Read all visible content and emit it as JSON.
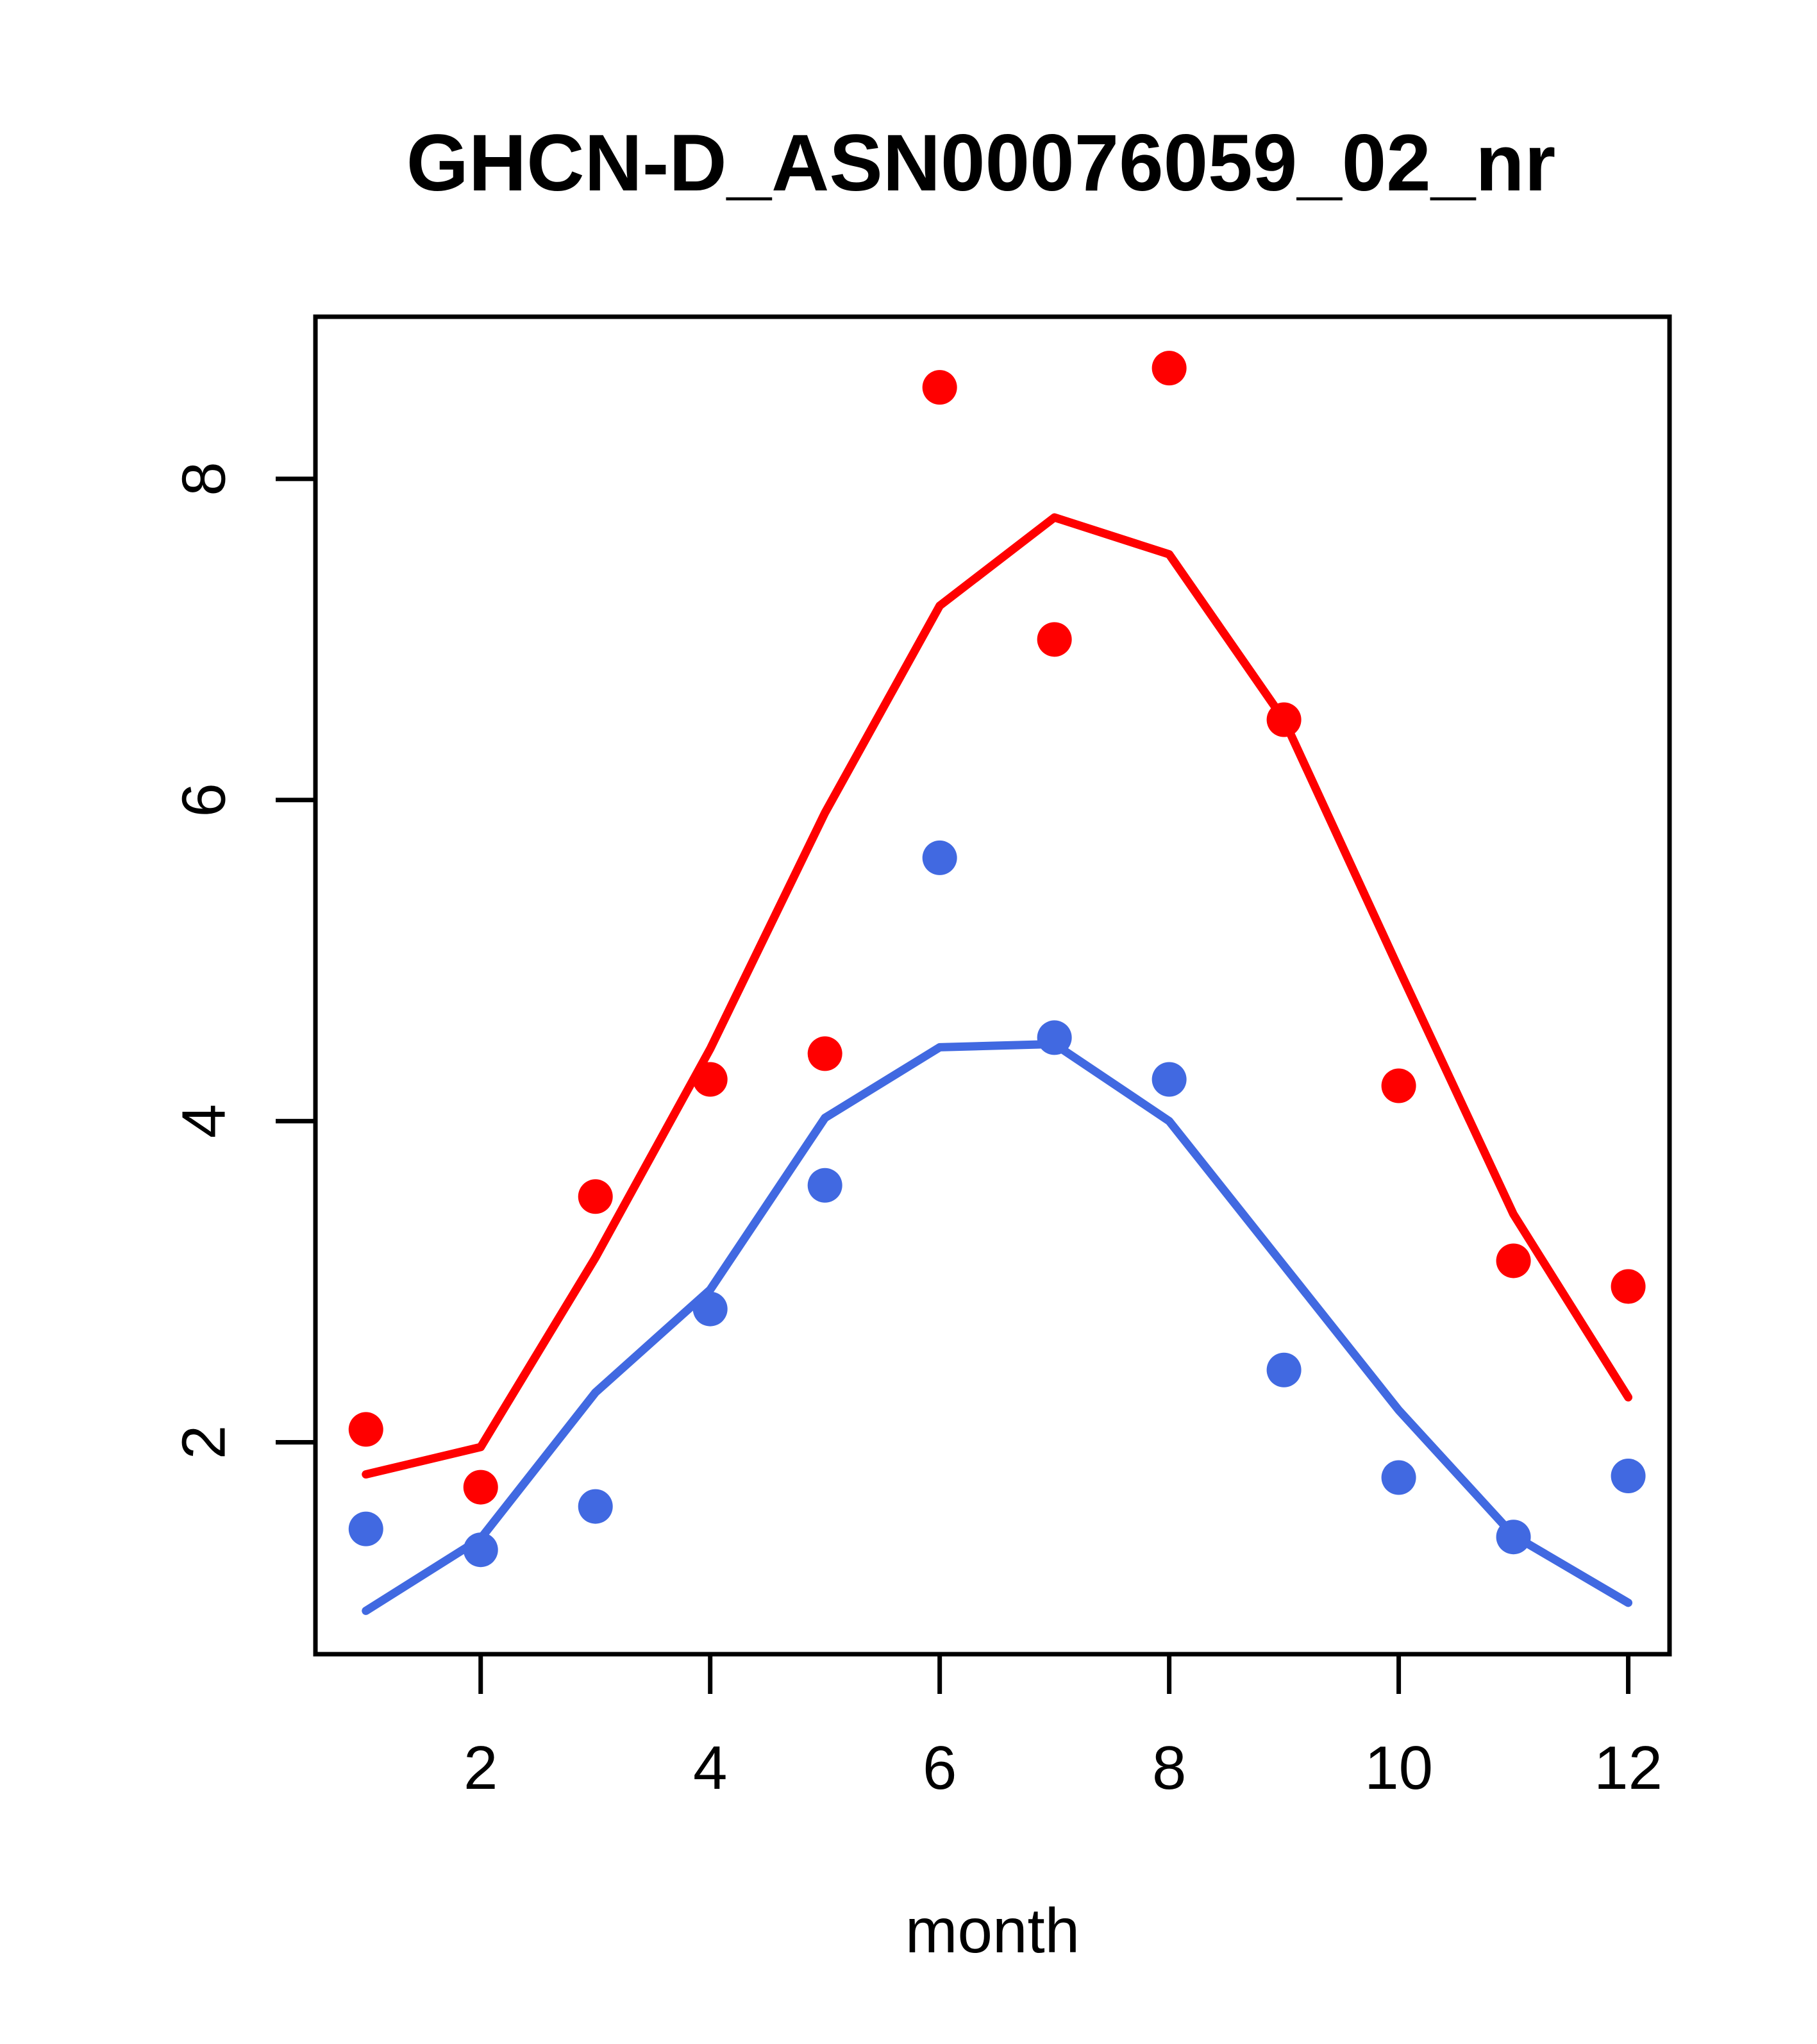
{
  "chart_data": {
    "type": "scatter",
    "title": "GHCN-D_ASN00076059_02_nr",
    "xlabel": "month",
    "ylabel": "",
    "x": [
      1,
      2,
      3,
      4,
      5,
      6,
      7,
      8,
      9,
      10,
      11,
      12
    ],
    "series": [
      {
        "name": "red-points",
        "kind": "scatter",
        "color": "#ff0000",
        "values": [
          2.08,
          1.72,
          3.53,
          4.26,
          4.42,
          8.57,
          7.0,
          8.69,
          6.5,
          4.22,
          3.13,
          2.97
        ]
      },
      {
        "name": "blue-points",
        "kind": "scatter",
        "color": "#4169e1",
        "values": [
          1.46,
          1.33,
          1.6,
          2.83,
          3.6,
          5.64,
          4.52,
          4.26,
          2.45,
          1.78,
          1.41,
          1.79
        ]
      },
      {
        "name": "red-smooth-line",
        "kind": "line",
        "color": "#ff0000",
        "values": [
          1.8,
          1.97,
          3.15,
          4.45,
          5.92,
          7.21,
          7.76,
          7.53,
          6.5,
          4.95,
          3.42,
          2.28
        ]
      },
      {
        "name": "blue-smooth-line",
        "kind": "line",
        "color": "#4169e1",
        "values": [
          0.95,
          1.4,
          2.31,
          2.95,
          4.02,
          4.46,
          4.48,
          4.0,
          3.1,
          2.2,
          1.42,
          1.0
        ]
      }
    ],
    "x_ticks": [
      2,
      4,
      6,
      8,
      10,
      12
    ],
    "y_ticks": [
      2,
      4,
      6,
      8
    ],
    "x_tick_labels": [
      "2",
      "4",
      "6",
      "8",
      "10",
      "12"
    ],
    "y_tick_labels": [
      "2",
      "4",
      "6",
      "8"
    ],
    "xlim": [
      0.56,
      12.36
    ],
    "ylim": [
      0.68,
      9.01
    ],
    "grid": false,
    "legend": null,
    "colors": {
      "series_red": "#ff0000",
      "series_blue": "#4169e1",
      "axis": "#000000",
      "background": "#ffffff"
    }
  }
}
